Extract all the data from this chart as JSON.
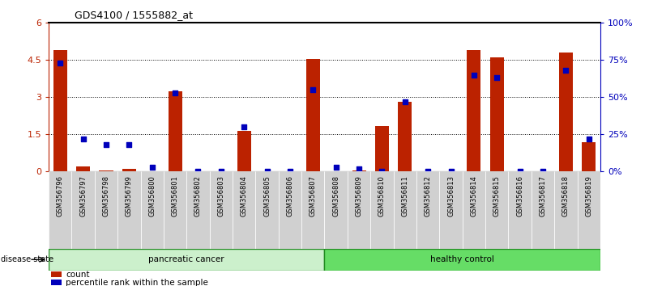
{
  "title": "GDS4100 / 1555882_at",
  "samples": [
    "GSM356796",
    "GSM356797",
    "GSM356798",
    "GSM356799",
    "GSM356800",
    "GSM356801",
    "GSM356802",
    "GSM356803",
    "GSM356804",
    "GSM356805",
    "GSM356806",
    "GSM356807",
    "GSM356808",
    "GSM356809",
    "GSM356810",
    "GSM356811",
    "GSM356812",
    "GSM356813",
    "GSM356814",
    "GSM356815",
    "GSM356816",
    "GSM356817",
    "GSM356818",
    "GSM356819"
  ],
  "count_values": [
    4.9,
    0.2,
    0.05,
    0.12,
    0.02,
    3.25,
    0.0,
    0.0,
    1.65,
    0.0,
    0.0,
    4.55,
    0.02,
    0.05,
    1.85,
    2.8,
    0.0,
    0.0,
    4.9,
    4.6,
    0.0,
    0.0,
    4.8,
    1.2
  ],
  "percentile_values": [
    73,
    22,
    18,
    18,
    3,
    53,
    0,
    0,
    30,
    0,
    0,
    55,
    3,
    2,
    0,
    47,
    0,
    0,
    65,
    63,
    0,
    0,
    68,
    22
  ],
  "cancer_count": 12,
  "healthy_count": 12,
  "ylim_left": [
    0,
    6
  ],
  "ylim_right": [
    0,
    100
  ],
  "yticks_left": [
    0,
    1.5,
    3.0,
    4.5,
    6.0
  ],
  "ytick_labels_left": [
    "0",
    "1.5",
    "3",
    "4.5",
    "6"
  ],
  "yticks_right": [
    0,
    25,
    50,
    75,
    100
  ],
  "ytick_labels_right": [
    "0%",
    "25%",
    "50%",
    "75%",
    "100%"
  ],
  "bar_color": "#bb2200",
  "dot_color": "#0000bb",
  "cancer_bg": "#ccf0cc",
  "healthy_bg": "#66dd66",
  "label_count": "count",
  "label_percentile": "percentile rank within the sample",
  "disease_state_label": "disease state",
  "cancer_label": "pancreatic cancer",
  "healthy_label": "healthy control",
  "fig_width": 8.01,
  "fig_height": 3.54,
  "dpi": 100
}
